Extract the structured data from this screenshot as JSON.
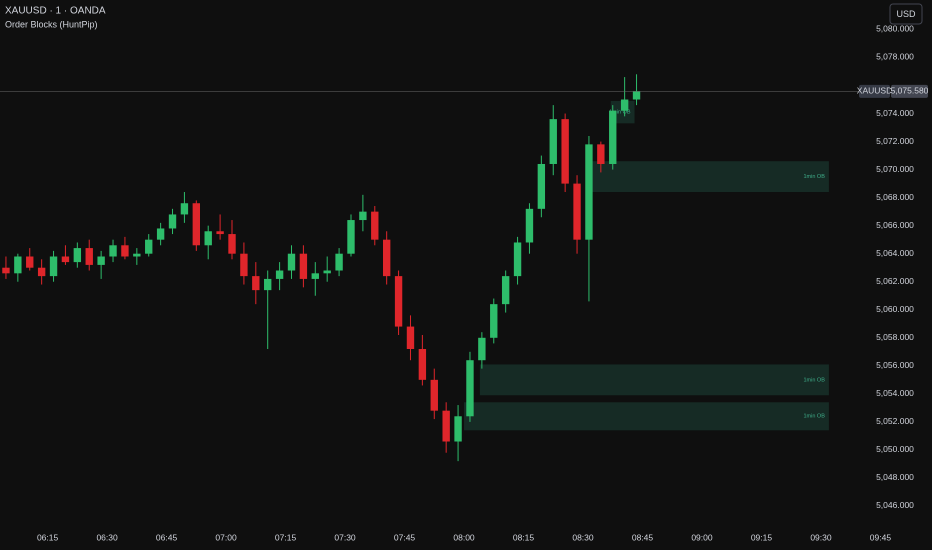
{
  "chart_data": {
    "type": "candlestick",
    "title": "XAUUSD · 1 · OANDA",
    "subtitle": "Order Blocks (HuntPip)",
    "currency": "USD",
    "up_color": "#2ebd6b",
    "down_color": "#e0262b",
    "x": [
      "06:03",
      "06:06",
      "06:09",
      "06:12",
      "06:15",
      "06:18",
      "06:21",
      "06:24",
      "06:27",
      "06:30",
      "06:33",
      "06:36",
      "06:39",
      "06:42",
      "06:45",
      "06:48",
      "06:51",
      "06:54",
      "06:57",
      "07:00",
      "07:03",
      "07:06",
      "07:09",
      "07:12",
      "07:15",
      "07:18",
      "07:21",
      "07:24",
      "07:27",
      "07:30",
      "07:33",
      "07:36",
      "07:39",
      "07:42",
      "07:45",
      "07:48",
      "07:51",
      "07:54",
      "07:57",
      "08:00",
      "08:03",
      "08:06",
      "08:09",
      "08:12",
      "08:15",
      "08:18",
      "08:21",
      "08:24",
      "08:27",
      "08:30",
      "08:33",
      "08:36",
      "08:39",
      "08:42"
    ],
    "open": [
      5063.0,
      5062.6,
      5063.8,
      5063.0,
      5062.4,
      5063.8,
      5063.4,
      5064.4,
      5063.2,
      5063.8,
      5064.6,
      5063.8,
      5064.0,
      5065.0,
      5065.8,
      5066.8,
      5067.6,
      5064.6,
      5065.6,
      5065.4,
      5064.0,
      5062.4,
      5061.4,
      5062.2,
      5062.8,
      5064.0,
      5062.2,
      5062.6,
      5062.8,
      5064.0,
      5066.4,
      5067.0,
      5065.0,
      5062.4,
      5058.8,
      5057.2,
      5055.0,
      5052.8,
      5050.6,
      5052.4,
      5056.4,
      5058.0,
      5060.4,
      5062.4,
      5064.8,
      5067.2,
      5070.4,
      5073.6,
      5069.0,
      5065.0,
      5071.8,
      5070.4,
      5074.2,
      5075.0
    ],
    "high": [
      5063.8,
      5064.0,
      5064.4,
      5063.6,
      5064.2,
      5064.6,
      5064.8,
      5065.0,
      5064.2,
      5065.0,
      5065.2,
      5064.4,
      5065.4,
      5066.2,
      5067.2,
      5068.4,
      5067.8,
      5066.0,
      5066.8,
      5066.4,
      5064.8,
      5063.4,
      5062.8,
      5063.4,
      5064.6,
      5064.6,
      5063.4,
      5063.8,
      5064.4,
      5066.8,
      5068.2,
      5067.4,
      5065.6,
      5062.8,
      5059.6,
      5058.2,
      5055.8,
      5053.4,
      5053.2,
      5057.0,
      5058.4,
      5060.8,
      5062.8,
      5065.2,
      5067.6,
      5071.0,
      5074.6,
      5074.0,
      5069.6,
      5072.4,
      5072.0,
      5074.6,
      5076.6,
      5076.8
    ],
    "low": [
      5062.2,
      5062.0,
      5062.8,
      5061.8,
      5062.0,
      5063.2,
      5063.0,
      5062.8,
      5062.2,
      5063.4,
      5063.6,
      5063.2,
      5063.8,
      5064.6,
      5065.4,
      5066.2,
      5064.2,
      5063.6,
      5065.0,
      5063.6,
      5061.8,
      5060.4,
      5057.2,
      5061.4,
      5062.2,
      5061.6,
      5061.0,
      5062.0,
      5062.4,
      5063.8,
      5065.6,
      5064.6,
      5061.8,
      5058.2,
      5056.4,
      5054.6,
      5052.2,
      5049.8,
      5049.2,
      5052.0,
      5055.8,
      5057.6,
      5059.8,
      5061.8,
      5064.0,
      5066.6,
      5069.6,
      5068.4,
      5064.0,
      5060.6,
      5069.8,
      5070.0,
      5073.8,
      5074.6
    ],
    "close": [
      5062.6,
      5063.8,
      5063.0,
      5062.4,
      5063.8,
      5063.4,
      5064.4,
      5063.2,
      5063.8,
      5064.6,
      5063.8,
      5064.0,
      5065.0,
      5065.8,
      5066.8,
      5067.6,
      5064.6,
      5065.6,
      5065.4,
      5064.0,
      5062.4,
      5061.4,
      5062.2,
      5062.8,
      5064.0,
      5062.2,
      5062.6,
      5062.8,
      5064.0,
      5066.4,
      5067.0,
      5065.0,
      5062.4,
      5058.8,
      5057.2,
      5055.0,
      5052.8,
      5050.6,
      5052.4,
      5056.4,
      5058.0,
      5060.4,
      5062.4,
      5064.8,
      5067.2,
      5070.4,
      5073.6,
      5069.0,
      5065.0,
      5071.8,
      5070.4,
      5074.2,
      5075.0,
      5075.58
    ],
    "xlim": [
      "06:03",
      "09:58"
    ],
    "ylim": [
      5045,
      5082.1
    ],
    "xticks": [
      "06:15",
      "06:30",
      "06:45",
      "07:00",
      "07:15",
      "07:30",
      "07:45",
      "08:00",
      "08:15",
      "08:30",
      "08:45",
      "09:00",
      "09:15",
      "09:30",
      "09:45"
    ],
    "yticks": [
      {
        "value": 5046,
        "label": "5,046.000"
      },
      {
        "value": 5048,
        "label": "5,048.000"
      },
      {
        "value": 5050,
        "label": "5,050.000"
      },
      {
        "value": 5052,
        "label": "5,052.000"
      },
      {
        "value": 5054,
        "label": "5,054.000"
      },
      {
        "value": 5056,
        "label": "5,056.000"
      },
      {
        "value": 5058,
        "label": "5,058.000"
      },
      {
        "value": 5060,
        "label": "5,060.000"
      },
      {
        "value": 5062,
        "label": "5,062.000"
      },
      {
        "value": 5064,
        "label": "5,064.000"
      },
      {
        "value": 5066,
        "label": "5,066.000"
      },
      {
        "value": 5068,
        "label": "5,068.000"
      },
      {
        "value": 5070,
        "label": "5,070.000"
      },
      {
        "value": 5072,
        "label": "5,072.000"
      },
      {
        "value": 5074,
        "label": "5,074.000"
      },
      {
        "value": 5076,
        "label": "5,076.000"
      },
      {
        "value": 5078,
        "label": "5,078.000"
      },
      {
        "value": 5080,
        "label": "5,080.000"
      }
    ],
    "order_blocks": [
      {
        "x0": "08:37",
        "x1": "08:43",
        "top": 5074.9,
        "bottom": 5073.3,
        "label": "1min OB"
      },
      {
        "x0": "08:32",
        "x1": "09:32",
        "top": 5070.6,
        "bottom": 5068.4,
        "label": "1min OB"
      },
      {
        "x0": "08:04",
        "x1": "09:32",
        "top": 5056.1,
        "bottom": 5053.9,
        "label": "1min OB"
      },
      {
        "x0": "08:00",
        "x1": "09:32",
        "top": 5053.4,
        "bottom": 5051.4,
        "label": "1min OB"
      }
    ],
    "ob_color": "#173029",
    "ob_text_color": "#3fae8a",
    "last_price": {
      "symbol": "XAUUSD",
      "value": 5075.58,
      "label": "5,075.580"
    }
  }
}
